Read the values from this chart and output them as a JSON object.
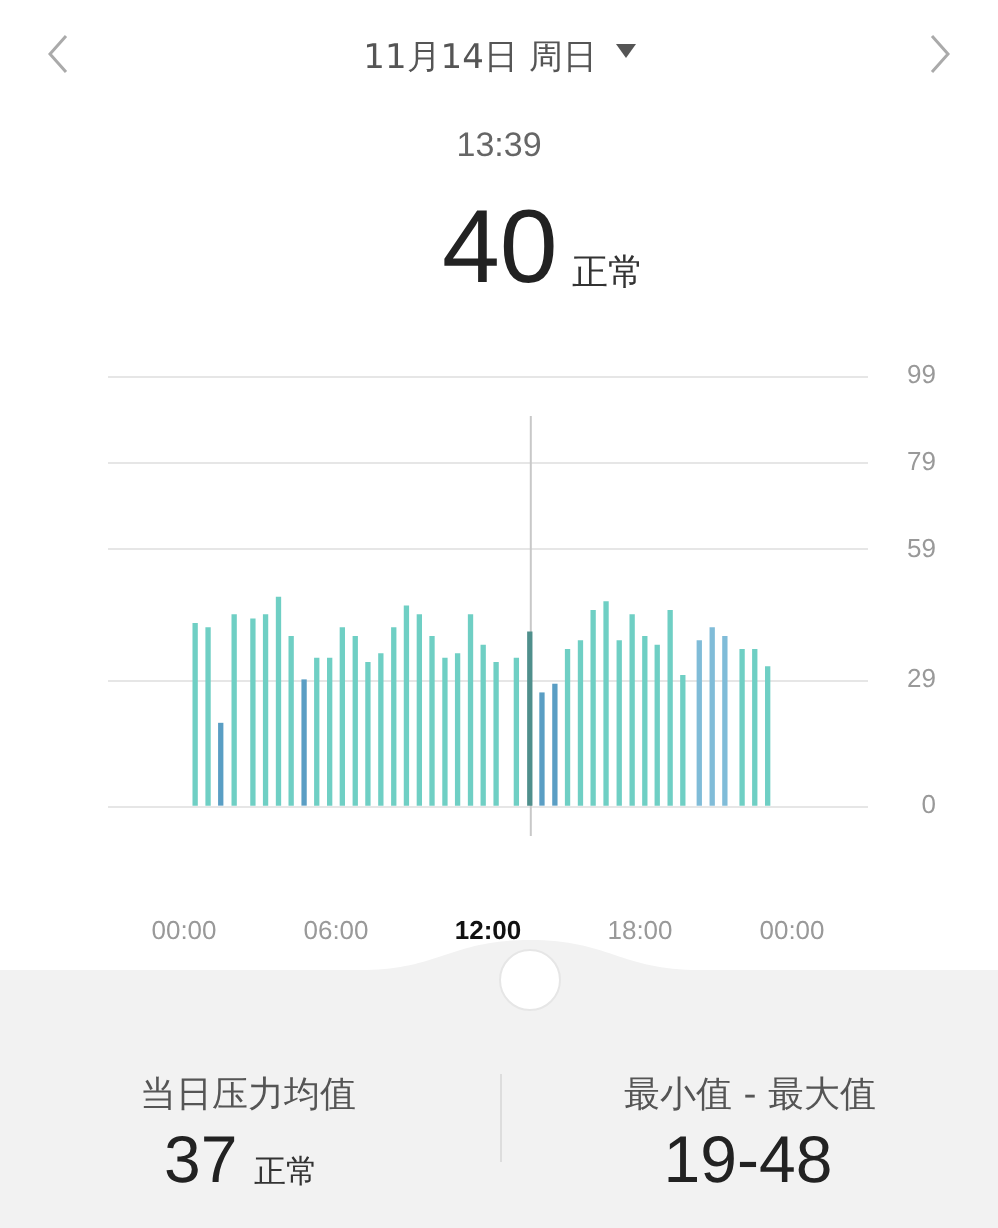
{
  "chart_data": {
    "type": "bar",
    "title": "11月14日 周日",
    "subtitle": "13:39",
    "x": [
      0.44,
      0.95,
      1.45,
      1.98,
      2.72,
      3.22,
      3.73,
      4.23,
      4.74,
      5.24,
      5.75,
      6.25,
      6.76,
      7.26,
      7.77,
      8.28,
      8.78,
      9.29,
      9.79,
      10.3,
      10.8,
      11.31,
      11.81,
      12.32,
      13.12,
      13.65,
      14.13,
      14.64,
      15.14,
      15.65,
      16.15,
      16.66,
      17.18,
      17.69,
      18.19,
      18.68,
      19.19,
      19.69,
      20.34,
      20.85,
      21.35,
      22.03,
      22.53,
      23.04
    ],
    "values": [
      42,
      41,
      19,
      44,
      43,
      44,
      48,
      39,
      29,
      34,
      34,
      41,
      39,
      33,
      35,
      41,
      46,
      44,
      39,
      34,
      35,
      44,
      37,
      33,
      34,
      40,
      26,
      28,
      36,
      38,
      45,
      47,
      38,
      44,
      39,
      37,
      45,
      30,
      38,
      41,
      39,
      36,
      36,
      32
    ],
    "colors": [
      "#6fcfc4",
      "#6fcfc4",
      "#5a9ec4",
      "#6fcfc4",
      "#6fcfc4",
      "#6fcfc4",
      "#6fcfc4",
      "#6fcfc4",
      "#5a9ec4",
      "#6fcfc4",
      "#6fcfc4",
      "#6fcfc4",
      "#6fcfc4",
      "#6fcfc4",
      "#6fcfc4",
      "#6fcfc4",
      "#6fcfc4",
      "#6fcfc4",
      "#6fcfc4",
      "#6fcfc4",
      "#6fcfc4",
      "#6fcfc4",
      "#6fcfc4",
      "#6fcfc4",
      "#6fcfc4",
      "#4f8f8c",
      "#5a9ec4",
      "#5a9ec4",
      "#6fcfc4",
      "#6fcfc4",
      "#6fcfc4",
      "#6fcfc4",
      "#6fcfc4",
      "#6fcfc4",
      "#6fcfc4",
      "#6fcfc4",
      "#6fcfc4",
      "#6fcfc4",
      "#80bcd8",
      "#80bcd8",
      "#80bcd8",
      "#6fcfc4",
      "#6fcfc4",
      "#6fcfc4"
    ],
    "xlim": [
      0,
      24
    ],
    "xticks": [
      {
        "value": 0,
        "label": "00:00"
      },
      {
        "value": 6,
        "label": "06:00"
      },
      {
        "value": 12,
        "label": "12:00"
      },
      {
        "value": 18,
        "label": "18:00"
      },
      {
        "value": 24,
        "label": "00:00"
      }
    ],
    "ylim": [
      0,
      99
    ],
    "yticks": [
      0,
      29,
      59,
      79,
      99
    ],
    "grid": "y",
    "ref_lines": [
      {
        "axis": "x",
        "value": 13.65,
        "color": "#c8c8c8"
      }
    ],
    "annotations": [
      "40",
      "正常",
      "当日压力均值",
      "37",
      "正常",
      "最小值 - 最大值",
      "19-48"
    ]
  }
}
